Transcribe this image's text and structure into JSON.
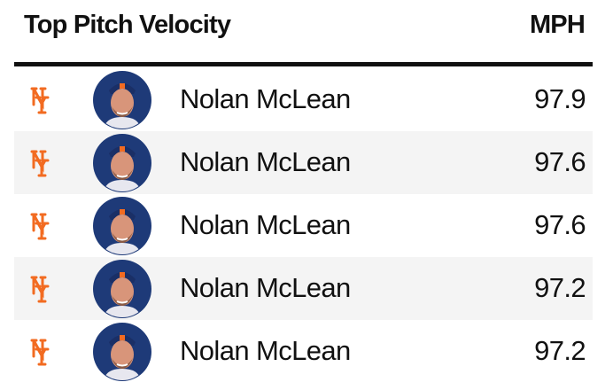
{
  "header": {
    "title": "Top Pitch Velocity",
    "unit": "MPH"
  },
  "rows": [
    {
      "name": "Nolan McLean",
      "value": 97.9
    },
    {
      "name": "Nolan McLean",
      "value": 97.6
    },
    {
      "name": "Nolan McLean",
      "value": 97.6
    },
    {
      "name": "Nolan McLean",
      "value": 97.2
    },
    {
      "name": "Nolan McLean",
      "value": 97.2
    }
  ]
}
